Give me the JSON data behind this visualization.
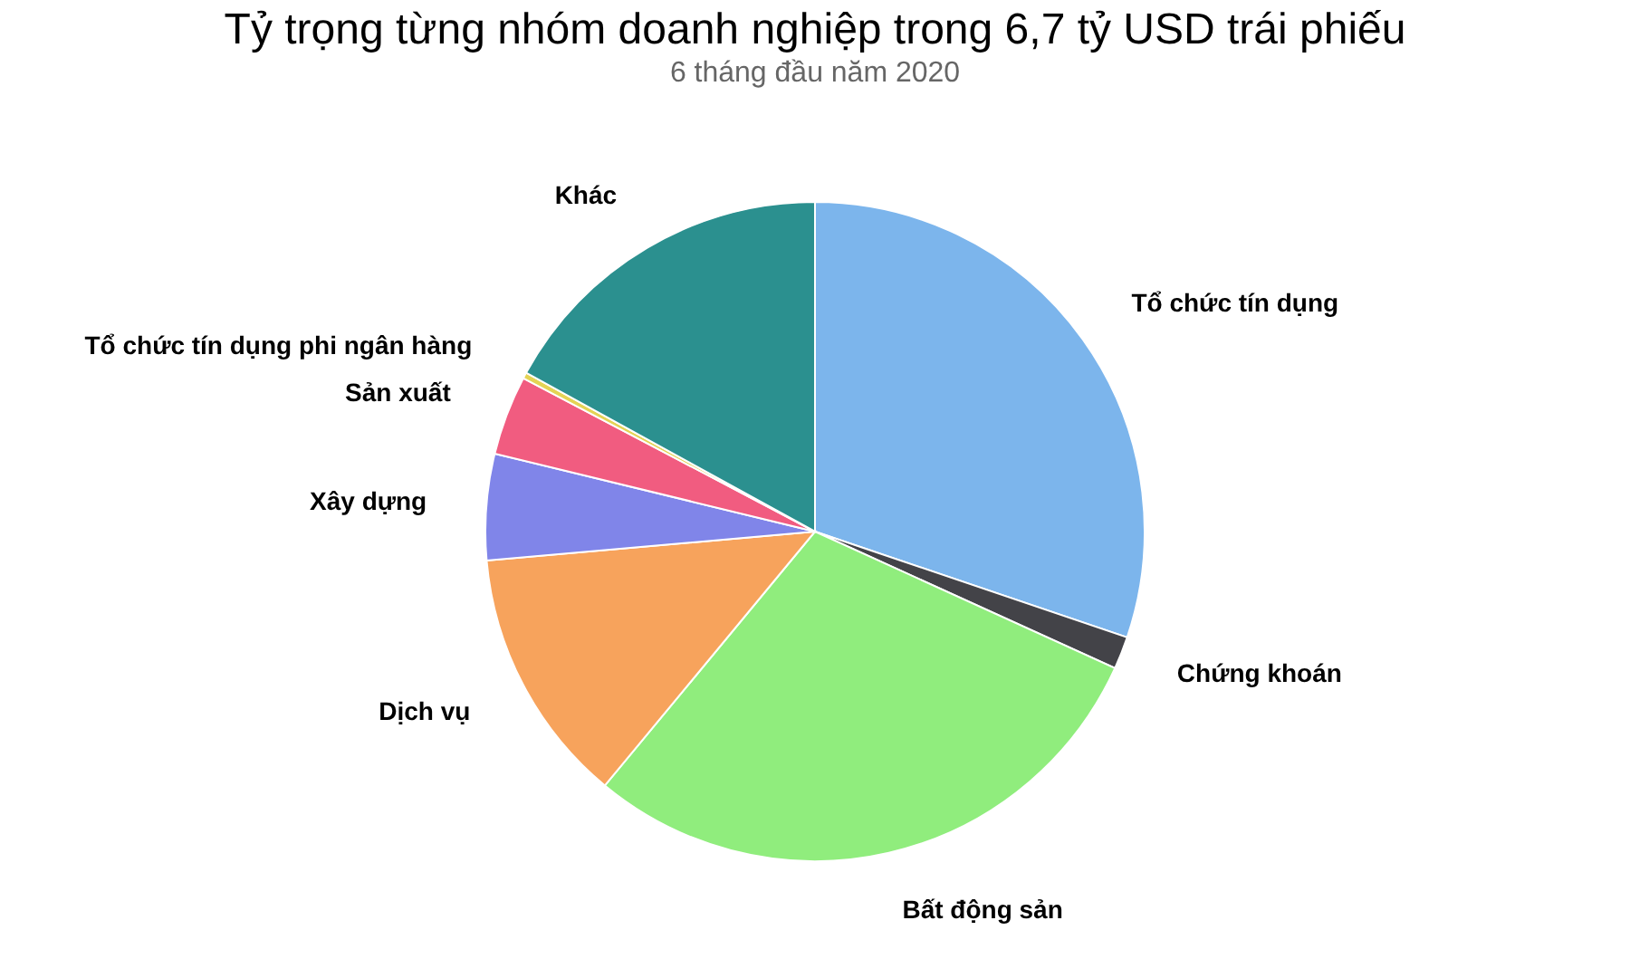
{
  "chart_data": {
    "type": "pie",
    "title": "Tỷ trọng từng nhóm doanh nghiệp trong 6,7 tỷ USD trái phiếu",
    "subtitle": "6 tháng đầu năm 2020",
    "categories": [
      "Tổ chức tín dụng",
      "Chứng khoán",
      "Bất động sản",
      "Dịch vụ",
      "Xây dựng",
      "Sản xuất",
      "Tổ chức tín dụng phi ngân hàng",
      "Khác"
    ],
    "values": [
      30.2,
      1.6,
      29.2,
      12.6,
      5.2,
      3.9,
      0.3,
      17.0
    ],
    "colors": [
      "#7cb5ec",
      "#434348",
      "#90ed7d",
      "#f7a35c",
      "#8085e9",
      "#f15c80",
      "#e4d354",
      "#2b908f"
    ],
    "legend": false
  }
}
